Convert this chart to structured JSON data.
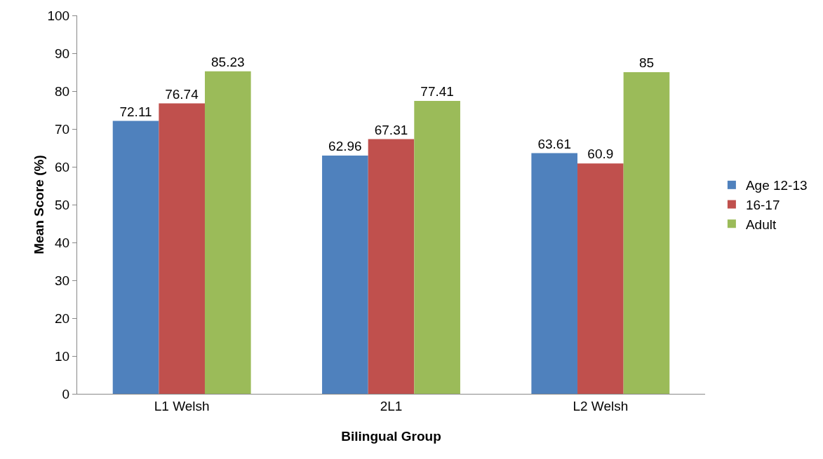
{
  "chart_data": {
    "type": "bar",
    "xlabel": "Bilingual Group",
    "ylabel": "Mean Score (%)",
    "categories": [
      "L1 Welsh",
      "2L1",
      "L2 Welsh"
    ],
    "series": [
      {
        "name": "Age 12-13",
        "color": "#4f81bd",
        "values": [
          72.11,
          62.96,
          63.61
        ]
      },
      {
        "name": "16-17",
        "color": "#c0504d",
        "values": [
          76.74,
          67.31,
          60.9
        ]
      },
      {
        "name": "Adult",
        "color": "#9bbb59",
        "values": [
          85.23,
          77.41,
          85
        ]
      }
    ],
    "ylim": [
      0,
      100
    ],
    "yticks": [
      0,
      10,
      20,
      30,
      40,
      50,
      60,
      70,
      80,
      90,
      100
    ],
    "grid": false,
    "legend": "right",
    "data_labels": true
  }
}
